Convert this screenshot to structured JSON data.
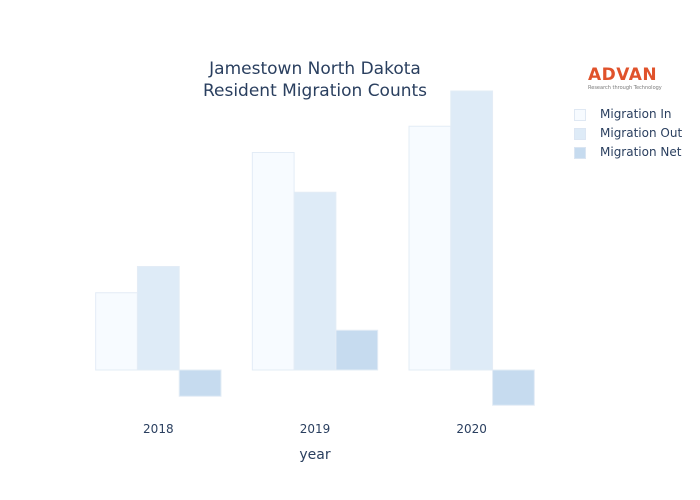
{
  "title_lines": [
    "Jamestown North Dakota",
    "Resident Migration Counts"
  ],
  "logo": {
    "brand": "ADVAN",
    "tagline": "Research through Technology"
  },
  "colors": {
    "migration_in": "#f7fbff",
    "migration_out": "#deebf7",
    "migration_net": "#c6dbef",
    "bar_outline": "#e3ecf6",
    "text": "#2a3f5f",
    "logo": "#e0522b"
  },
  "chart_data": {
    "type": "bar",
    "title": "Jamestown North Dakota Resident Migration Counts",
    "xlabel": "year",
    "ylabel": "",
    "categories": [
      "2018",
      "2019",
      "2020"
    ],
    "series": [
      {
        "name": "Migration In",
        "values": [
          1030,
          2900,
          3250
        ]
      },
      {
        "name": "Migration Out",
        "values": [
          1380,
          2370,
          3720
        ]
      },
      {
        "name": "Migration Net",
        "values": [
          -350,
          530,
          -470
        ]
      }
    ],
    "ylim": [
      -600,
      4200
    ],
    "grid": false,
    "y_ticks_visible": false,
    "legend_position": "top-right"
  }
}
